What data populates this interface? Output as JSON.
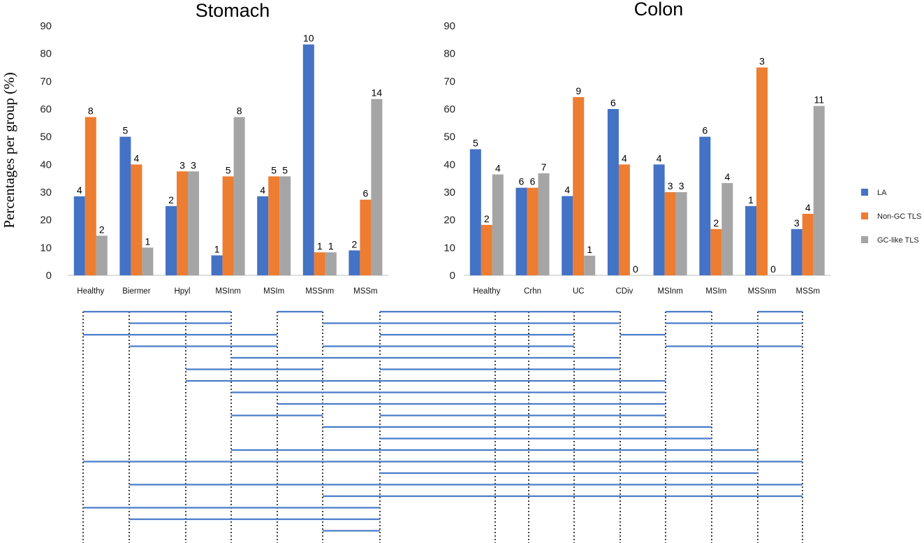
{
  "ylabel": "Percentages per group (%)",
  "legend": [
    {
      "label": "LA",
      "color": "#4472C4"
    },
    {
      "label": "Non-GC TLS",
      "color": "#ED7D31"
    },
    {
      "label": "GC-like TLS",
      "color": "#A5A5A5"
    }
  ],
  "chart_data": [
    {
      "type": "bar",
      "title": "Stomach",
      "ylabel": "Percentages per group (%)",
      "ylim": [
        0,
        90
      ],
      "yticks": [
        0,
        10,
        20,
        30,
        40,
        50,
        60,
        70,
        80,
        90
      ],
      "categories": [
        "Healthy",
        "Biermer",
        "Hpyl",
        "MSInm",
        "MSIm",
        "MSSnm",
        "MSSm"
      ],
      "series": [
        {
          "name": "LA",
          "color": "#4472C4",
          "values": [
            28.5,
            50,
            25,
            7.2,
            28.5,
            83.3,
            9
          ],
          "labels": [
            "4",
            "5",
            "2",
            "1",
            "4",
            "10",
            "2"
          ]
        },
        {
          "name": "Non-GC TLS",
          "color": "#ED7D31",
          "values": [
            57.1,
            40,
            37.5,
            35.7,
            35.7,
            8.3,
            27.3
          ],
          "labels": [
            "8",
            "4",
            "3",
            "5",
            "5",
            "1",
            "6"
          ]
        },
        {
          "name": "GC-like TLS",
          "color": "#A5A5A5",
          "values": [
            14.3,
            10,
            37.5,
            57.1,
            35.7,
            8.3,
            63.6
          ],
          "labels": [
            "2",
            "1",
            "3",
            "8",
            "5",
            "1",
            "14"
          ]
        }
      ]
    },
    {
      "type": "bar",
      "title": "Colon",
      "ylim": [
        0,
        90
      ],
      "yticks": [
        0,
        10,
        20,
        30,
        40,
        50,
        60,
        70,
        80,
        90
      ],
      "categories": [
        "Healthy",
        "Crhn",
        "UC",
        "CDiv",
        "MSInm",
        "MSIm",
        "MSSnm",
        "MSSm"
      ],
      "series": [
        {
          "name": "LA",
          "color": "#4472C4",
          "values": [
            45.5,
            31.6,
            28.6,
            60,
            40,
            50,
            25,
            16.7
          ],
          "labels": [
            "5",
            "6",
            "4",
            "6",
            "4",
            "6",
            "1",
            "3"
          ]
        },
        {
          "name": "Non-GC TLS",
          "color": "#ED7D31",
          "values": [
            18.2,
            31.6,
            64.3,
            40,
            30,
            16.7,
            75,
            22.2
          ],
          "labels": [
            "2",
            "6",
            "9",
            "4",
            "3",
            "2",
            "3",
            "4"
          ]
        },
        {
          "name": "GC-like TLS",
          "color": "#A5A5A5",
          "values": [
            36.4,
            36.8,
            7.1,
            0,
            30,
            33.3,
            0,
            61.1
          ],
          "labels": [
            "4",
            "7",
            "1",
            "0",
            "3",
            "4",
            "0",
            "11"
          ]
        }
      ]
    }
  ],
  "comparison_groups": [
    "Healthy",
    "Biermer",
    "Hpyl",
    "MSInm",
    "MSIm",
    "MSSnm",
    "MSSm",
    "Healthy",
    "Crhn",
    "UC",
    "CDiv",
    "MSInm",
    "MSIm",
    "MSSnm",
    "MSSm"
  ],
  "comparisons": [
    [
      0,
      3
    ],
    [
      4,
      5
    ],
    [
      6,
      10
    ],
    [
      11,
      12
    ],
    [
      13,
      14
    ],
    [
      1,
      3
    ],
    [
      5,
      10
    ],
    [
      10,
      11
    ],
    [
      11,
      14
    ],
    [
      0,
      4
    ],
    [
      6,
      9
    ],
    [
      11,
      14
    ],
    [
      1,
      4
    ],
    [
      5,
      9
    ],
    [
      3,
      10
    ],
    [
      2,
      5
    ],
    [
      6,
      10
    ],
    [
      2,
      11
    ],
    [
      3,
      11
    ],
    [
      4,
      11
    ],
    [
      6,
      11
    ],
    [
      5,
      12
    ],
    [
      3,
      5
    ],
    [
      6,
      12
    ],
    [
      3,
      13
    ],
    [
      0,
      14
    ],
    [
      6,
      13
    ],
    [
      1,
      14
    ],
    [
      5,
      14
    ],
    [
      0,
      6
    ],
    [
      1,
      6
    ],
    [
      5,
      6
    ]
  ]
}
